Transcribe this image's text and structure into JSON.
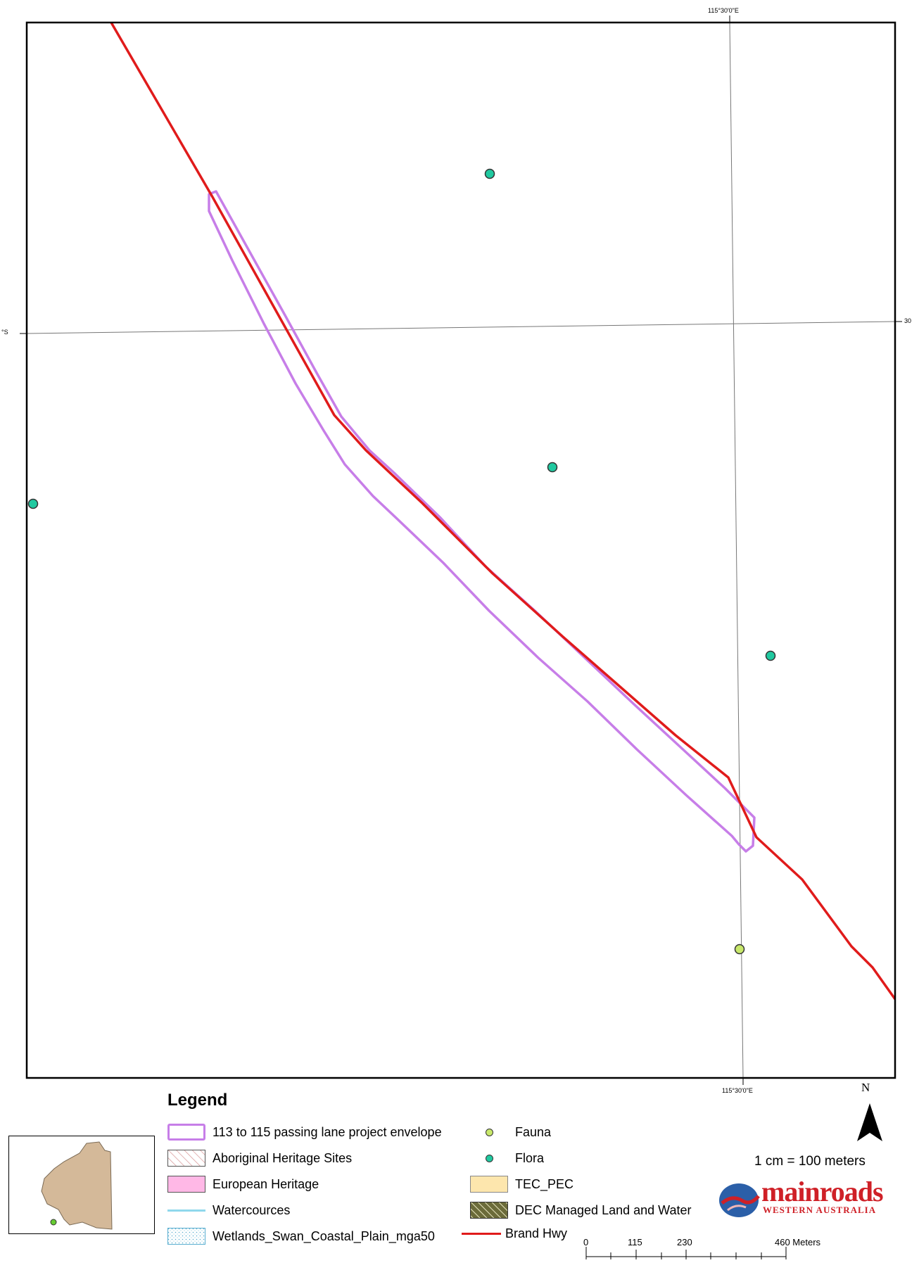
{
  "map": {
    "graticule_labels": {
      "top_lon": "115°30'0\"E",
      "bottom_lon": "115°30'0\"E",
      "left_lat": "°S",
      "right_lat": "30"
    },
    "colors": {
      "road": "#e01b1b",
      "envelope": "#c77ee8",
      "flora": "#20c9a0",
      "fauna": "#c8e86b",
      "frame": "#000000",
      "graticule": "#777777"
    },
    "point_features": [
      {
        "type": "flora",
        "name": "flora-point"
      },
      {
        "type": "flora",
        "name": "flora-point"
      },
      {
        "type": "flora",
        "name": "flora-point"
      },
      {
        "type": "flora",
        "name": "flora-point"
      },
      {
        "type": "fauna",
        "name": "fauna-point"
      }
    ]
  },
  "legend": {
    "title": "Legend",
    "items": [
      {
        "label": "113 to 115 passing lane project envelope",
        "swatch": "envelope"
      },
      {
        "label": "Aboriginal Heritage Sites",
        "swatch": "hatch-red"
      },
      {
        "label": "European Heritage",
        "swatch": "pink",
        "color": "#ffb8e6"
      },
      {
        "label": "Watercources",
        "swatch": "line-blue",
        "color": "#8fd8ec"
      },
      {
        "label": "Wetlands_Swan_Coastal_Plain_mga50",
        "swatch": "dots-blue"
      },
      {
        "label": "Fauna",
        "swatch": "point",
        "color": "#c8e86b"
      },
      {
        "label": "Flora",
        "swatch": "point",
        "color": "#20c9a0"
      },
      {
        "label": "TEC_PEC",
        "swatch": "fill",
        "color": "#fde6ad"
      },
      {
        "label": "DEC Managed Land and Water",
        "swatch": "hatch-olive"
      },
      {
        "label": "Brand Hwy",
        "swatch": "line-red",
        "color": "#e01b1b"
      }
    ]
  },
  "scale": {
    "ratio": "1 cm = 100 meters",
    "ticks": [
      "0",
      "115",
      "230",
      "460 Meters"
    ]
  },
  "north": {
    "letter": "N"
  },
  "logo": {
    "main": "mainroads",
    "sub": "WESTERN AUSTRALIA"
  },
  "inset": {
    "land_color": "#d4b999",
    "marker_color": "#66cc33"
  }
}
